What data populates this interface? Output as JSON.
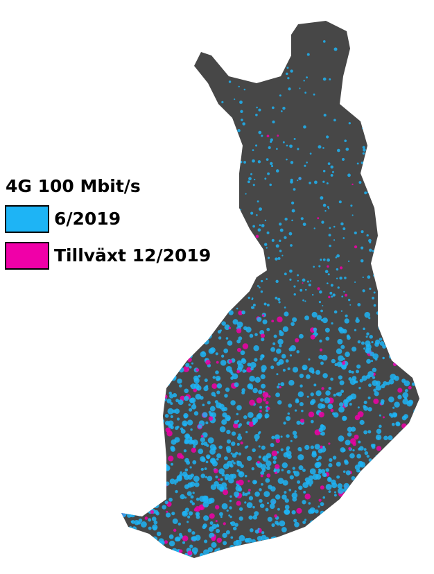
{
  "legend": {
    "title": "4G 100 Mbit/s",
    "items": [
      {
        "label": "6/2019",
        "color": "#1eb4f5"
      },
      {
        "label": "Tillväxt 12/2019",
        "color": "#f000a8"
      }
    ]
  }
}
